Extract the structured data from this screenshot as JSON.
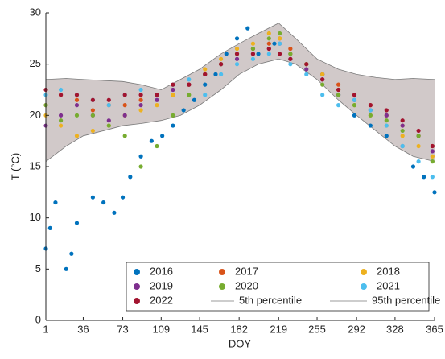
{
  "chart_data": {
    "type": "scatter",
    "xlabel": "DOY",
    "ylabel": "T (°C)",
    "xlim": [
      1,
      365
    ],
    "xticks": [
      1,
      36,
      73,
      109,
      145,
      182,
      219,
      255,
      292,
      328,
      365
    ],
    "ylim": [
      0,
      30
    ],
    "yticks": [
      0,
      5,
      10,
      15,
      20,
      25,
      30
    ],
    "band_color": "#c9bfbf",
    "percentiles": [
      {
        "name": "5th percentile",
        "color": "#7a7a7a",
        "x": [
          1,
          20,
          36,
          55,
          73,
          90,
          109,
          127,
          145,
          165,
          182,
          200,
          219,
          235,
          255,
          275,
          292,
          310,
          328,
          345,
          365
        ],
        "values": [
          15.5,
          17,
          18,
          18.5,
          19,
          19.2,
          19.5,
          20,
          21,
          22.5,
          24,
          25,
          25.5,
          25,
          23.5,
          21.5,
          20,
          18.5,
          17,
          16,
          15.5
        ]
      },
      {
        "name": "95th percentile",
        "color": "#7a7a7a",
        "x": [
          1,
          20,
          36,
          55,
          73,
          90,
          109,
          127,
          145,
          165,
          182,
          200,
          219,
          235,
          255,
          275,
          292,
          310,
          328,
          345,
          365
        ],
        "values": [
          23.5,
          23.6,
          23.5,
          23.4,
          23.3,
          23,
          22.5,
          23.5,
          24.5,
          26,
          27,
          28,
          29,
          27.5,
          25.5,
          24.5,
          24,
          23.7,
          23.5,
          23.6,
          23.5
        ]
      }
    ],
    "series": [
      {
        "name": "2016",
        "color": "#0072BD",
        "x": [
          1,
          5,
          10,
          20,
          25,
          30,
          45,
          55,
          65,
          73,
          80,
          90,
          100,
          110,
          120,
          130,
          140,
          150,
          160,
          170,
          180,
          190,
          200,
          215,
          230,
          245,
          260,
          275,
          290,
          305,
          320,
          335,
          345,
          355,
          365
        ],
        "values": [
          7,
          9,
          11.5,
          5,
          6.5,
          9.5,
          12,
          11.5,
          10.5,
          12,
          14,
          16,
          17.5,
          18,
          19,
          20.5,
          21.5,
          23,
          24,
          26,
          27.5,
          28.5,
          26,
          27,
          26,
          25,
          24,
          22,
          20,
          19,
          18,
          17,
          15,
          14,
          12.5
        ]
      },
      {
        "name": "2017",
        "color": "#D95319",
        "x": [
          1,
          15,
          30,
          45,
          60,
          75,
          90,
          105,
          120,
          135,
          150,
          165,
          180,
          195,
          210,
          220,
          230,
          245,
          260,
          275,
          290,
          305,
          320,
          335,
          350,
          363
        ],
        "values": [
          21,
          22,
          21.5,
          20.5,
          21,
          21,
          21.5,
          22,
          22,
          23,
          24,
          25,
          26,
          26.5,
          27,
          27.5,
          26.5,
          25,
          24,
          23,
          22,
          21,
          20,
          19,
          18,
          17
        ]
      },
      {
        "name": "2018",
        "color": "#EDB120",
        "x": [
          1,
          15,
          30,
          45,
          60,
          75,
          90,
          105,
          120,
          135,
          150,
          165,
          180,
          195,
          210,
          220,
          230,
          245,
          260,
          275,
          290,
          305,
          320,
          335,
          350,
          363
        ],
        "values": [
          20,
          19,
          18,
          18.5,
          19,
          20,
          20.5,
          21,
          22,
          23,
          24.5,
          25.5,
          26.5,
          27,
          28,
          27.5,
          26,
          25,
          24,
          22.5,
          21,
          20,
          19,
          18,
          17,
          16
        ]
      },
      {
        "name": "2019",
        "color": "#7E2F8E",
        "x": [
          1,
          15,
          30,
          45,
          60,
          75,
          90,
          105,
          120,
          135,
          150,
          165,
          180,
          195,
          210,
          220,
          230,
          245,
          260,
          275,
          290,
          305,
          320,
          335,
          350,
          363
        ],
        "values": [
          19,
          20,
          21,
          20,
          19.5,
          20,
          21,
          21.5,
          22.5,
          23,
          24,
          25,
          25.5,
          26,
          26.5,
          27,
          25.5,
          24.5,
          23.5,
          22,
          21.5,
          20.5,
          20,
          19,
          18,
          16.5
        ]
      },
      {
        "name": "2020",
        "color": "#77AC30",
        "x": [
          1,
          15,
          30,
          45,
          60,
          75,
          90,
          105,
          120,
          135,
          150,
          165,
          180,
          195,
          210,
          220,
          230,
          245,
          260,
          275,
          290,
          305,
          320,
          335,
          350,
          363
        ],
        "values": [
          21,
          19.5,
          20,
          20,
          19,
          18,
          15,
          17,
          20,
          22,
          24,
          25,
          26,
          26.5,
          27.5,
          28,
          26,
          25,
          23,
          22,
          21,
          20,
          19.5,
          18.5,
          18,
          15.5
        ]
      },
      {
        "name": "2021",
        "color": "#4DBEEE",
        "x": [
          1,
          15,
          30,
          45,
          60,
          75,
          90,
          105,
          120,
          135,
          150,
          165,
          180,
          195,
          210,
          220,
          230,
          245,
          260,
          275,
          290,
          305,
          320,
          335,
          350,
          363
        ],
        "values": [
          22,
          22.5,
          22,
          21.5,
          21,
          22,
          22.5,
          22,
          23,
          23.5,
          22,
          24,
          25,
          25.5,
          26,
          27,
          25,
          24,
          22,
          21,
          21.5,
          20.5,
          19,
          17,
          15.5,
          14
        ]
      },
      {
        "name": "2022",
        "color": "#A2142F",
        "x": [
          1,
          15,
          30,
          45,
          60,
          75,
          90,
          105,
          120,
          135,
          150,
          165,
          180,
          195,
          210,
          220,
          230,
          245,
          260,
          275,
          290,
          305,
          320,
          335,
          350,
          363
        ],
        "values": [
          22.5,
          22,
          22,
          21.5,
          21.5,
          22,
          22,
          22,
          23,
          23,
          24,
          25,
          26,
          26,
          26.5,
          26,
          25.5,
          25,
          23.5,
          22.5,
          22,
          21,
          20.5,
          19.5,
          18.5,
          17
        ]
      }
    ]
  }
}
